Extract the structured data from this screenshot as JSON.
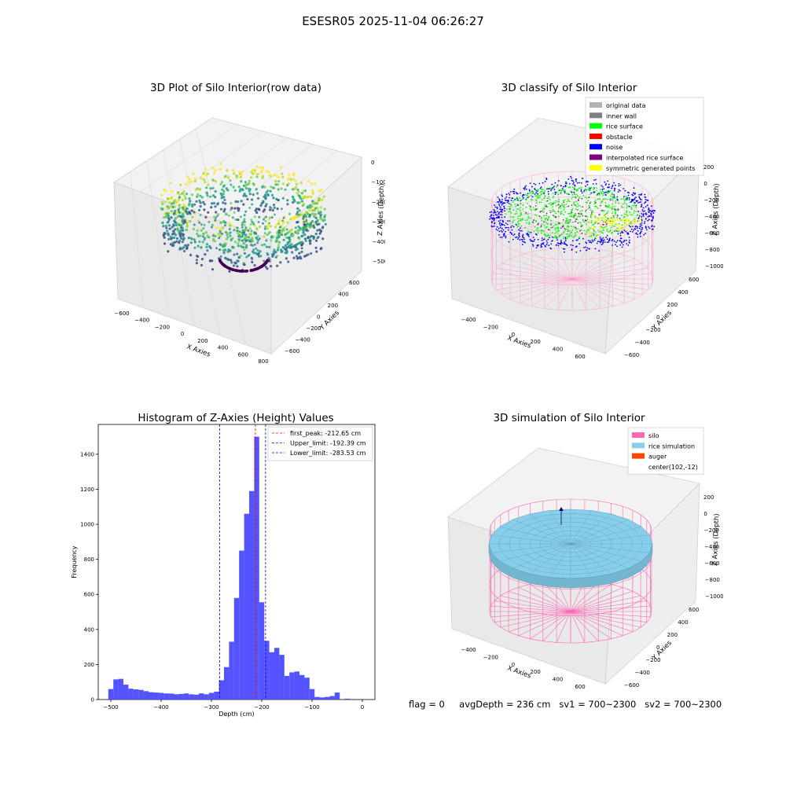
{
  "suptitle": "ESESR05 2025-11-04 06:26:27",
  "footer": {
    "flag": "flag = 0",
    "avg_depth": "avgDepth = 236 cm",
    "sv1": "sv1 = 700~2300",
    "sv2": "sv2 = 700~2300"
  },
  "panels": {
    "raw": {
      "title": "3D Plot of Silo Interior(row data)",
      "xlabel": "X Axies",
      "ylabel": "Y Axies",
      "zlabel": "Z Axies (Depth)",
      "xticks": [
        "−600",
        "−400",
        "−200",
        "0",
        "200",
        "400",
        "600",
        "800"
      ],
      "yticks": [
        "600",
        "400",
        "200",
        "0",
        "−200",
        "−400",
        "−600"
      ],
      "zticks": [
        "0",
        "−100",
        "−200",
        "−300",
        "−400",
        "−500"
      ]
    },
    "classify": {
      "title": "3D classify of Silo Interior",
      "xlabel": "X Axies",
      "ylabel": "Y Axies",
      "zlabel": "Z Axies (Depth)",
      "xticks": [
        "−400",
        "−200",
        "0",
        "200",
        "400",
        "600"
      ],
      "yticks": [
        "600",
        "400",
        "200",
        "0",
        "−200",
        "−400",
        "−600"
      ],
      "zticks": [
        "200",
        "0",
        "−200",
        "−400",
        "−600",
        "−800",
        "−1000"
      ],
      "legend": [
        {
          "label": "original data",
          "color": "#b3b3b3"
        },
        {
          "label": "inner wall",
          "color": "#808080"
        },
        {
          "label": "rice surface",
          "color": "#00ff00"
        },
        {
          "label": "obstacle",
          "color": "#ff0000"
        },
        {
          "label": "noise",
          "color": "#0000ff"
        },
        {
          "label": "interpolated rice surface",
          "color": "#800080"
        },
        {
          "label": "symmetric generated points",
          "color": "#ffff00"
        }
      ]
    },
    "simulation": {
      "title": "3D simulation of Silo Interior",
      "xlabel": "X Axies",
      "ylabel": "Y Axies",
      "zlabel": "Z Axies (Depth)",
      "xticks": [
        "−400",
        "−200",
        "0",
        "200",
        "400",
        "600"
      ],
      "yticks": [
        "600",
        "400",
        "200",
        "0",
        "−200",
        "−400",
        "−600"
      ],
      "zticks": [
        "200",
        "0",
        "−200",
        "−400",
        "−600",
        "−800",
        "−1000"
      ],
      "legend": [
        {
          "label": "silo",
          "color": "#ff69b4"
        },
        {
          "label": "rice simulation",
          "color": "#87ceeb"
        },
        {
          "label": "auger",
          "color": "#ff4500"
        },
        {
          "label": "center(102,-12)",
          "color": ""
        }
      ]
    }
  },
  "colors": {
    "hist_bar": "#4a4aff",
    "peak_line": "#ff0000",
    "limit_line": "#0000ff",
    "silo": "#ff69b4",
    "rice": "#87ceeb"
  },
  "chart_data": [
    {
      "type": "bar",
      "title": "Histogram of Z-Axies (Height) Values",
      "xlabel": "Depth (cm)",
      "ylabel": "Frequency",
      "xlim": [
        -525,
        25
      ],
      "ylim": [
        0,
        1570
      ],
      "xticks": [
        -500,
        -400,
        -300,
        -200,
        -100,
        0
      ],
      "yticks": [
        0,
        200,
        400,
        600,
        800,
        1000,
        1200,
        1400
      ],
      "bin_width": 10,
      "bins": [
        {
          "x0": -505,
          "count": 60
        },
        {
          "x0": -495,
          "count": 115
        },
        {
          "x0": -485,
          "count": 118
        },
        {
          "x0": -475,
          "count": 85
        },
        {
          "x0": -465,
          "count": 62
        },
        {
          "x0": -455,
          "count": 58
        },
        {
          "x0": -445,
          "count": 55
        },
        {
          "x0": -435,
          "count": 48
        },
        {
          "x0": -425,
          "count": 42
        },
        {
          "x0": -415,
          "count": 40
        },
        {
          "x0": -405,
          "count": 38
        },
        {
          "x0": -395,
          "count": 35
        },
        {
          "x0": -385,
          "count": 34
        },
        {
          "x0": -375,
          "count": 30
        },
        {
          "x0": -365,
          "count": 32
        },
        {
          "x0": -355,
          "count": 35
        },
        {
          "x0": -345,
          "count": 30
        },
        {
          "x0": -335,
          "count": 28
        },
        {
          "x0": -325,
          "count": 35
        },
        {
          "x0": -315,
          "count": 30
        },
        {
          "x0": -305,
          "count": 38
        },
        {
          "x0": -295,
          "count": 45
        },
        {
          "x0": -285,
          "count": 110
        },
        {
          "x0": -275,
          "count": 185
        },
        {
          "x0": -265,
          "count": 330
        },
        {
          "x0": -255,
          "count": 580
        },
        {
          "x0": -245,
          "count": 850
        },
        {
          "x0": -235,
          "count": 1060
        },
        {
          "x0": -225,
          "count": 1190
        },
        {
          "x0": -215,
          "count": 1500
        },
        {
          "x0": -205,
          "count": 555
        },
        {
          "x0": -195,
          "count": 335
        },
        {
          "x0": -185,
          "count": 270
        },
        {
          "x0": -175,
          "count": 295
        },
        {
          "x0": -165,
          "count": 255
        },
        {
          "x0": -155,
          "count": 135
        },
        {
          "x0": -145,
          "count": 155
        },
        {
          "x0": -135,
          "count": 160
        },
        {
          "x0": -125,
          "count": 140
        },
        {
          "x0": -115,
          "count": 125
        },
        {
          "x0": -105,
          "count": 60
        },
        {
          "x0": -95,
          "count": 15
        },
        {
          "x0": -85,
          "count": 12
        },
        {
          "x0": -75,
          "count": 15
        },
        {
          "x0": -65,
          "count": 20
        },
        {
          "x0": -55,
          "count": 40
        },
        {
          "x0": -45,
          "count": 0
        },
        {
          "x0": -35,
          "count": 5
        },
        {
          "x0": -25,
          "count": 3
        }
      ],
      "vlines": [
        {
          "label": "first_peak: -212.65 cm",
          "x": -212.65,
          "color": "#ff0000"
        },
        {
          "label": "Upper_limit: -192.39 cm",
          "x": -192.39,
          "color": "#0000ff"
        },
        {
          "label": "Lower_limit: -283.53 cm",
          "x": -283.53,
          "color": "#0000ff"
        }
      ],
      "legend_position": "top-right"
    }
  ]
}
